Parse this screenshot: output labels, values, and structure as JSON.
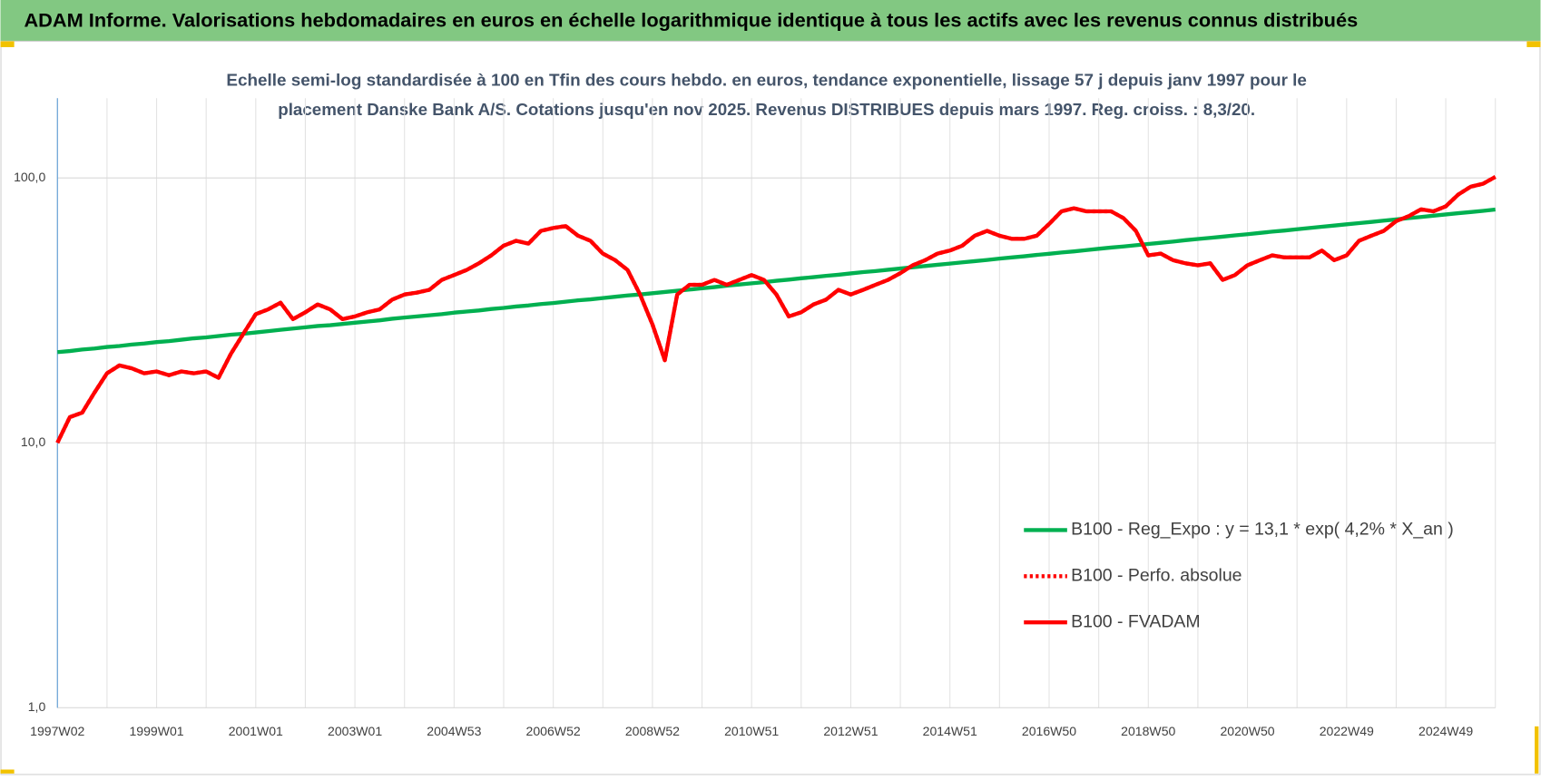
{
  "chart_data": {
    "type": "line",
    "title": "ADAM Informe. Valorisations hebdomadaires en euros en échelle logarithmique identique à tous les actifs avec les revenus connus distribués",
    "subtitle": [
      "Echelle semi-log standardisée à 100 en Tfin des cours hebdo. en euros, tendance exponentielle, lissage 57 j depuis janv 1997 pour le",
      "placement Danske Bank A/S. Cotations jusqu'en nov 2025. Revenus DISTRIBUES depuis mars 1997. Reg. croiss. : 8,3/20."
    ],
    "log_scale": true,
    "grid": true,
    "legend_position": "right",
    "ylim": [
      1,
      200
    ],
    "yticks": [
      {
        "value": 1,
        "label": "1,0"
      },
      {
        "value": 10,
        "label": "10,0"
      },
      {
        "value": 100,
        "label": "100,0"
      }
    ],
    "categories": [
      "1997W02",
      null,
      null,
      null,
      null,
      null,
      null,
      null,
      "1999W01",
      null,
      null,
      null,
      null,
      null,
      null,
      null,
      "2001W01",
      null,
      null,
      null,
      null,
      null,
      null,
      null,
      "2003W01",
      null,
      null,
      null,
      null,
      null,
      null,
      null,
      "2004W53",
      null,
      null,
      null,
      null,
      null,
      null,
      null,
      "2006W52",
      null,
      null,
      null,
      null,
      null,
      null,
      null,
      "2008W52",
      null,
      null,
      null,
      null,
      null,
      null,
      null,
      "2010W51",
      null,
      null,
      null,
      null,
      null,
      null,
      null,
      "2012W51",
      null,
      null,
      null,
      null,
      null,
      null,
      null,
      "2014W51",
      null,
      null,
      null,
      null,
      null,
      null,
      null,
      "2016W50",
      null,
      null,
      null,
      null,
      null,
      null,
      null,
      "2018W50",
      null,
      null,
      null,
      null,
      null,
      null,
      null,
      "2020W50",
      null,
      null,
      null,
      null,
      null,
      null,
      null,
      "2022W49",
      null,
      null,
      null,
      null,
      null,
      null,
      null,
      "2024W49",
      null,
      null,
      null,
      null
    ],
    "series": [
      {
        "name": "B100 - Reg_Expo : y = 13,1 * exp( 4,2% *  X_an )",
        "color": "#00b050",
        "dash": "solid",
        "values": [
          22.0,
          22.2,
          22.5,
          22.7,
          23.0,
          23.2,
          23.5,
          23.7,
          24.0,
          24.2,
          24.5,
          24.8,
          25.0,
          25.3,
          25.6,
          25.8,
          26.1,
          26.4,
          26.7,
          27.0,
          27.3,
          27.6,
          27.8,
          28.1,
          28.4,
          28.7,
          29.0,
          29.4,
          29.7,
          30.0,
          30.3,
          30.6,
          31.0,
          31.3,
          31.6,
          32.0,
          32.3,
          32.7,
          33.0,
          33.4,
          33.7,
          34.1,
          34.5,
          34.8,
          35.2,
          35.6,
          36.0,
          36.3,
          36.7,
          37.1,
          37.5,
          37.9,
          38.3,
          38.7,
          39.2,
          39.6,
          40.0,
          40.4,
          40.9,
          41.3,
          41.8,
          42.2,
          42.7,
          43.1,
          43.6,
          44.1,
          44.5,
          45.0,
          45.5,
          46.0,
          46.5,
          47.0,
          47.5,
          48.0,
          48.5,
          49.0,
          49.6,
          50.1,
          50.6,
          51.2,
          51.7,
          52.3,
          52.8,
          53.4,
          54.0,
          54.6,
          55.1,
          55.7,
          56.3,
          56.9,
          57.5,
          58.2,
          58.8,
          59.4,
          60.0,
          60.7,
          61.3,
          62.0,
          62.7,
          63.3,
          64.0,
          64.7,
          65.4,
          66.1,
          66.8,
          67.5,
          68.2,
          69.0,
          69.7,
          70.5,
          71.2,
          72.0,
          72.8,
          73.6,
          74.3,
          75.1,
          76.0
        ]
      },
      {
        "name": "B100 - Perfo. absolue",
        "color": "#ff0000",
        "dash": "dotted",
        "values": [
          10.0,
          12.5,
          13.0,
          15.5,
          18.3,
          19.6,
          19.1,
          18.3,
          18.6,
          18.0,
          18.6,
          18.3,
          18.6,
          17.6,
          21.7,
          25.8,
          30.6,
          31.9,
          33.8,
          29.3,
          31.1,
          33.3,
          31.9,
          29.3,
          30.0,
          31.1,
          31.9,
          34.7,
          36.3,
          36.9,
          37.8,
          41.2,
          43.0,
          44.9,
          47.6,
          51.0,
          55.5,
          57.9,
          56.5,
          63.1,
          64.7,
          65.8,
          60.5,
          57.9,
          51.8,
          48.9,
          44.9,
          36.3,
          28.0,
          20.5,
          36.3,
          39.5,
          39.5,
          41.2,
          39.5,
          41.2,
          43.0,
          41.2,
          36.3,
          30.0,
          31.1,
          33.3,
          34.7,
          37.8,
          36.3,
          37.8,
          39.5,
          41.2,
          43.7,
          46.8,
          48.9,
          51.8,
          53.2,
          55.5,
          60.5,
          63.1,
          60.5,
          58.9,
          58.9,
          60.5,
          67.0,
          74.8,
          76.8,
          74.8,
          74.8,
          74.8,
          70.5,
          63.1,
          51.0,
          51.8,
          48.9,
          47.6,
          46.8,
          47.6,
          41.2,
          43.0,
          46.8,
          48.9,
          51.0,
          50.1,
          50.1,
          50.1,
          53.2,
          48.9,
          51.0,
          57.9,
          60.5,
          63.1,
          68.7,
          71.7,
          76.1,
          74.8,
          78.1,
          86.5,
          92.6,
          95.0,
          100.9
        ]
      },
      {
        "name": "B100 - FVADAM",
        "color": "#ff0000",
        "dash": "solid",
        "values": [
          10.0,
          12.5,
          13.0,
          15.5,
          18.3,
          19.6,
          19.1,
          18.3,
          18.6,
          18.0,
          18.6,
          18.3,
          18.6,
          17.6,
          21.7,
          25.8,
          30.6,
          31.9,
          33.8,
          29.3,
          31.1,
          33.3,
          31.9,
          29.3,
          30.0,
          31.1,
          31.9,
          34.7,
          36.3,
          36.9,
          37.8,
          41.2,
          43.0,
          44.9,
          47.6,
          51.0,
          55.5,
          57.9,
          56.5,
          63.1,
          64.7,
          65.8,
          60.5,
          57.9,
          51.8,
          48.9,
          44.9,
          36.3,
          28.0,
          20.5,
          36.3,
          39.5,
          39.5,
          41.2,
          39.5,
          41.2,
          43.0,
          41.2,
          36.3,
          30.0,
          31.1,
          33.3,
          34.7,
          37.8,
          36.3,
          37.8,
          39.5,
          41.2,
          43.7,
          46.8,
          48.9,
          51.8,
          53.2,
          55.5,
          60.5,
          63.1,
          60.5,
          58.9,
          58.9,
          60.5,
          67.0,
          74.8,
          76.8,
          74.8,
          74.8,
          74.8,
          70.5,
          63.1,
          51.0,
          51.8,
          48.9,
          47.6,
          46.8,
          47.6,
          41.2,
          43.0,
          46.8,
          48.9,
          51.0,
          50.1,
          50.1,
          50.1,
          53.2,
          48.9,
          51.0,
          57.9,
          60.5,
          63.1,
          68.7,
          71.7,
          76.1,
          74.8,
          78.1,
          86.5,
          92.6,
          95.0,
          100.9
        ]
      }
    ]
  }
}
